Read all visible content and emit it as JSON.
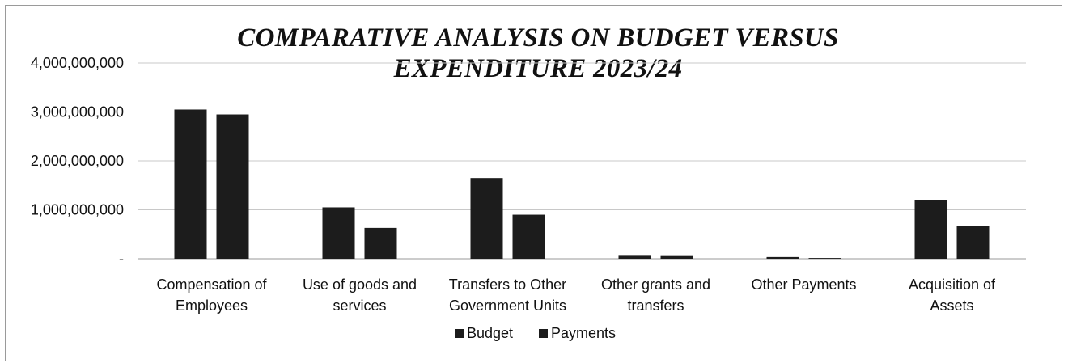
{
  "chart_data": {
    "type": "bar",
    "title_lines": [
      "COMPARATIVE ANALYSIS ON BUDGET VERSUS",
      "EXPENDITURE 2023/24"
    ],
    "categories": [
      [
        "Compensation of",
        "Employees"
      ],
      [
        "Use of goods and",
        "services"
      ],
      [
        "Transfers to Other",
        "Government Units"
      ],
      [
        "Other grants and",
        "transfers"
      ],
      [
        "Other Payments"
      ],
      [
        "Acquisition of",
        "Assets"
      ]
    ],
    "series": [
      {
        "name": "Budget",
        "color": "#1c1c1c",
        "values": [
          3050000000,
          1050000000,
          1650000000,
          60000000,
          35000000,
          1200000000
        ]
      },
      {
        "name": "Payments",
        "color": "#1c1c1c",
        "values": [
          2950000000,
          630000000,
          900000000,
          55000000,
          15000000,
          670000000
        ]
      }
    ],
    "yticks": [
      {
        "value": 0,
        "label": "-"
      },
      {
        "value": 1000000000,
        "label": "1,000,000,000"
      },
      {
        "value": 2000000000,
        "label": "2,000,000,000"
      },
      {
        "value": 3000000000,
        "label": "3,000,000,000"
      },
      {
        "value": 4000000000,
        "label": "4,000,000,000"
      }
    ],
    "ylim": [
      0,
      4000000000
    ],
    "grid": true,
    "legend_position": "bottom",
    "xlabel": "",
    "ylabel": ""
  }
}
